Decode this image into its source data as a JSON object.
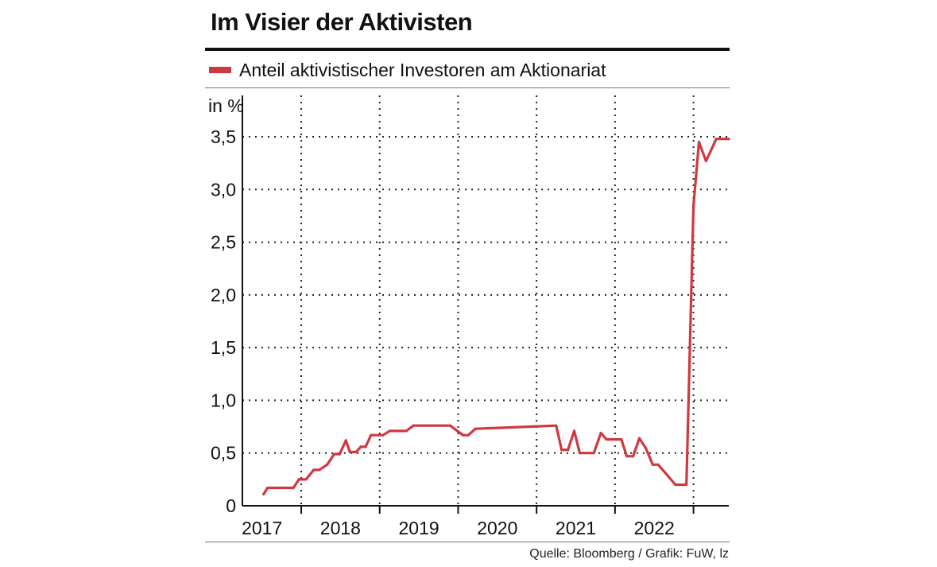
{
  "title": "Im Visier der Aktivisten",
  "legend_label": "Anteil aktivistischer Investoren am Aktionariat",
  "source": "Quelle: Bloomberg / Grafik: FuW, lz",
  "colors": {
    "series": "#d0383f",
    "text": "#111111",
    "grid": "#222222"
  },
  "chart_data": {
    "type": "line",
    "title": "Im Visier der Aktivisten",
    "ylabel": "in %",
    "xlabel": "",
    "ylim": [
      0,
      3.5
    ],
    "xlim": [
      2016.75,
      2022.95
    ],
    "y_ticks": [
      0,
      0.5,
      1.0,
      1.5,
      2.0,
      2.5,
      3.0,
      3.5
    ],
    "y_tick_labels": [
      "0",
      "0,5",
      "1,0",
      "1,5",
      "2,0",
      "2,5",
      "3,0",
      "3,5"
    ],
    "x_ticks": [
      2017,
      2018,
      2019,
      2020,
      2021,
      2022
    ],
    "x_tick_labels": [
      "2017",
      "2018",
      "2019",
      "2020",
      "2021",
      "2022"
    ],
    "grid": true,
    "series": [
      {
        "name": "Anteil aktivistischer Investoren am Aktionariat",
        "x": [
          2017.02,
          2017.07,
          2017.4,
          2017.47,
          2017.56,
          2017.66,
          2017.73,
          2017.83,
          2017.92,
          2017.99,
          2018.07,
          2018.12,
          2018.2,
          2018.26,
          2018.32,
          2018.39,
          2018.54,
          2018.63,
          2018.84,
          2018.93,
          2019.4,
          2019.56,
          2019.63,
          2019.72,
          2020.75,
          2020.82,
          2020.9,
          2020.98,
          2021.05,
          2021.23,
          2021.32,
          2021.39,
          2021.58,
          2021.65,
          2021.73,
          2021.81,
          2021.89,
          2021.98,
          2022.05,
          2022.27,
          2022.32,
          2022.41,
          2022.5,
          2022.57,
          2022.66,
          2022.79,
          2022.95
        ],
        "y": [
          0.11,
          0.17,
          0.17,
          0.25,
          0.25,
          0.34,
          0.34,
          0.39,
          0.49,
          0.49,
          0.62,
          0.51,
          0.51,
          0.56,
          0.56,
          0.67,
          0.67,
          0.71,
          0.71,
          0.76,
          0.76,
          0.67,
          0.67,
          0.73,
          0.76,
          0.53,
          0.53,
          0.71,
          0.5,
          0.5,
          0.69,
          0.63,
          0.63,
          0.47,
          0.47,
          0.64,
          0.55,
          0.39,
          0.39,
          0.2,
          0.2,
          0.2,
          2.85,
          3.45,
          3.27,
          3.48,
          3.48
        ]
      }
    ]
  }
}
